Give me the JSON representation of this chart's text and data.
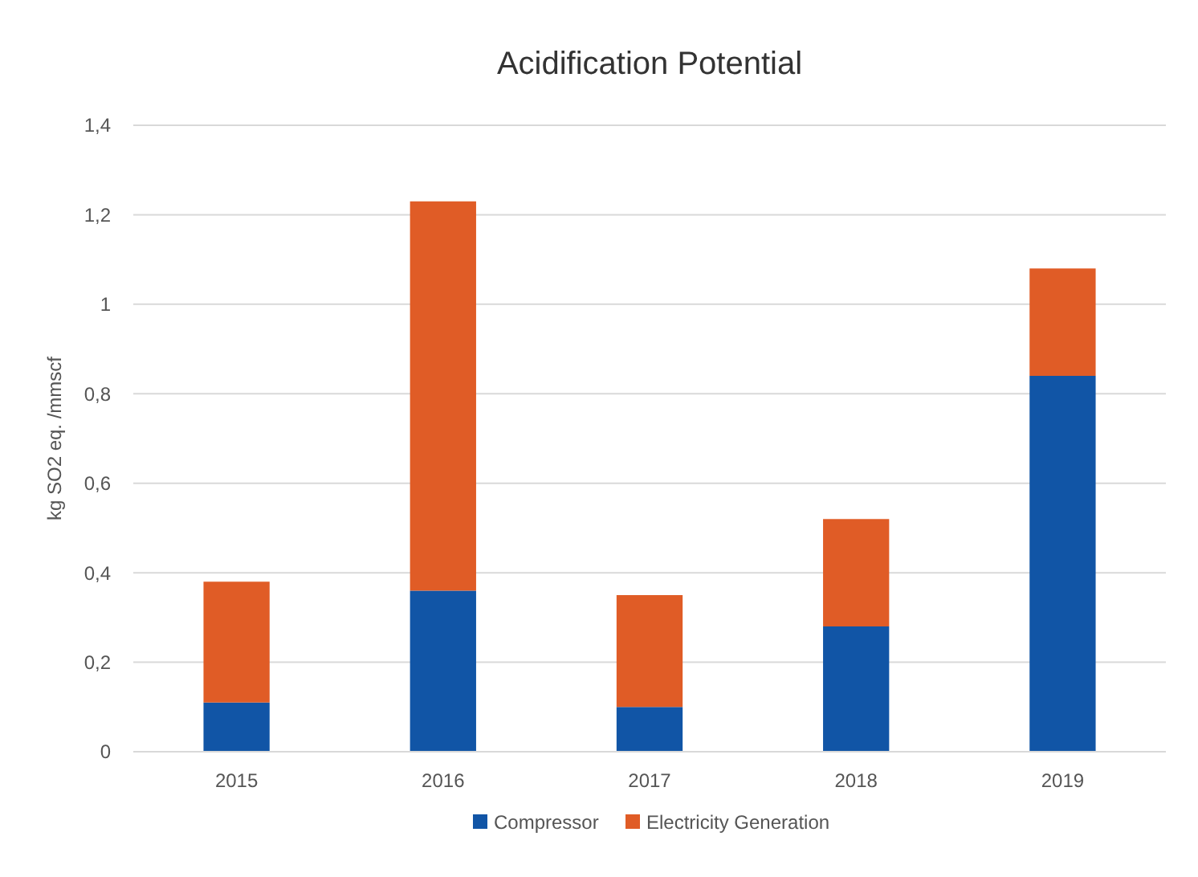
{
  "chart_data": {
    "type": "bar",
    "title": "Acidification Potential",
    "ylabel": "kg SO2 eq. /mmscf",
    "categories": [
      "2015",
      "2016",
      "2017",
      "2018",
      "2019"
    ],
    "stacked": true,
    "series": [
      {
        "name": "Compressor",
        "color": "#1155a6",
        "values": [
          0.11,
          0.36,
          0.1,
          0.28,
          0.84
        ]
      },
      {
        "name": "Electricity Generation",
        "color": "#e05c26",
        "values": [
          0.27,
          0.87,
          0.25,
          0.24,
          0.24
        ]
      }
    ],
    "ylim": [
      0,
      1.4
    ],
    "yticks": [
      0,
      {
        "value": 0.2,
        "label": "0,2"
      },
      {
        "value": 0.4,
        "label": "0,4"
      },
      {
        "value": 0.6,
        "label": "0,6"
      },
      {
        "value": 0.8,
        "label": "0,8"
      },
      1,
      {
        "value": 1.2,
        "label": "1,2"
      },
      {
        "value": 1.4,
        "label": "1,4"
      }
    ],
    "grid": "y",
    "legend": "bottom"
  }
}
